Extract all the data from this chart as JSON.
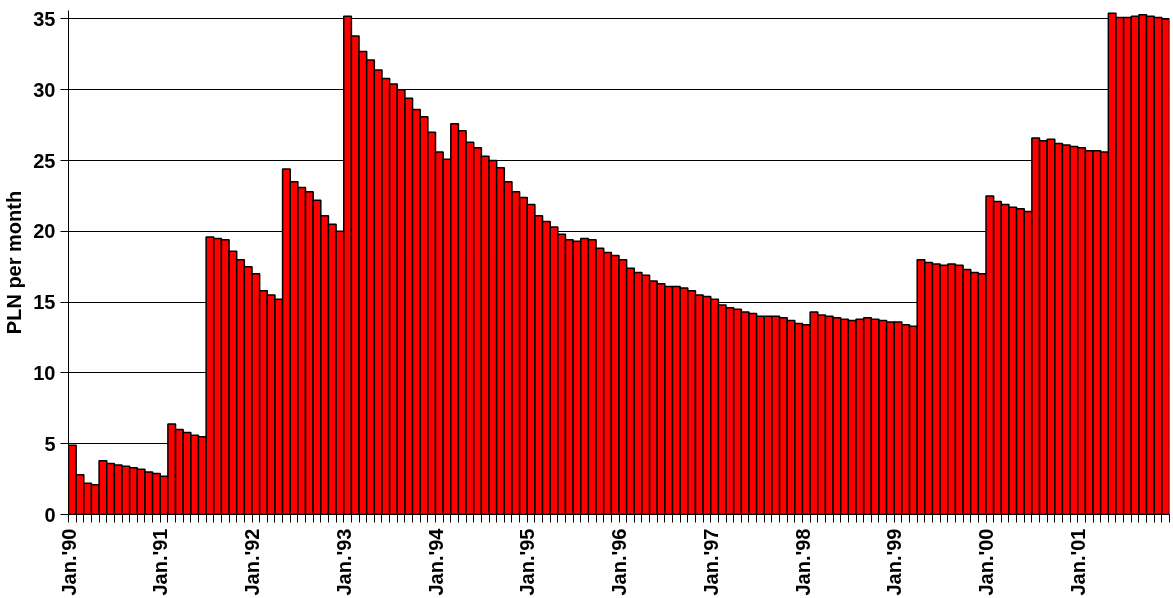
{
  "chart_data": {
    "type": "bar",
    "ylabel": "PLN per month",
    "categories": [
      "Jan.'90",
      null,
      null,
      null,
      null,
      null,
      null,
      null,
      null,
      null,
      null,
      null,
      "Jan.'91",
      null,
      null,
      null,
      null,
      null,
      null,
      null,
      null,
      null,
      null,
      null,
      "Jan.'92",
      null,
      null,
      null,
      null,
      null,
      null,
      null,
      null,
      null,
      null,
      null,
      "Jan.'93",
      null,
      null,
      null,
      null,
      null,
      null,
      null,
      null,
      null,
      null,
      null,
      "Jan.'94",
      null,
      null,
      null,
      null,
      null,
      null,
      null,
      null,
      null,
      null,
      null,
      "Jan.'95",
      null,
      null,
      null,
      null,
      null,
      null,
      null,
      null,
      null,
      null,
      null,
      "Jan.'96",
      null,
      null,
      null,
      null,
      null,
      null,
      null,
      null,
      null,
      null,
      null,
      "Jan.'97",
      null,
      null,
      null,
      null,
      null,
      null,
      null,
      null,
      null,
      null,
      null,
      "Jan.'98",
      null,
      null,
      null,
      null,
      null,
      null,
      null,
      null,
      null,
      null,
      null,
      "Jan.'99",
      null,
      null,
      null,
      null,
      null,
      null,
      null,
      null,
      null,
      null,
      null,
      "Jan.'00",
      null,
      null,
      null,
      null,
      null,
      null,
      null,
      null,
      null,
      null,
      null,
      "Jan.'01",
      null,
      null,
      null,
      null,
      null,
      null,
      null,
      null,
      null,
      null,
      null
    ],
    "values": [
      4.9,
      2.8,
      2.2,
      2.1,
      3.8,
      3.6,
      3.5,
      3.4,
      3.3,
      3.2,
      3.0,
      2.9,
      2.7,
      6.4,
      6.0,
      5.8,
      5.6,
      5.5,
      19.6,
      19.5,
      19.4,
      18.6,
      18.0,
      17.5,
      17.0,
      15.8,
      15.5,
      15.2,
      24.4,
      23.5,
      23.1,
      22.8,
      22.2,
      21.1,
      20.5,
      20.0,
      35.2,
      33.8,
      32.7,
      32.1,
      31.4,
      30.8,
      30.4,
      30.0,
      29.4,
      28.6,
      28.1,
      27.0,
      25.6,
      25.1,
      27.6,
      27.1,
      26.3,
      25.9,
      25.3,
      25.0,
      24.5,
      23.5,
      22.8,
      22.4,
      21.9,
      21.1,
      20.7,
      20.3,
      19.8,
      19.4,
      19.3,
      19.5,
      19.4,
      18.8,
      18.5,
      18.3,
      18.0,
      17.4,
      17.1,
      16.9,
      16.5,
      16.3,
      16.1,
      16.1,
      16.0,
      15.8,
      15.5,
      15.4,
      15.2,
      14.8,
      14.6,
      14.5,
      14.3,
      14.2,
      14.0,
      14.0,
      14.0,
      13.9,
      13.7,
      13.5,
      13.4,
      14.3,
      14.1,
      14.0,
      13.9,
      13.8,
      13.7,
      13.8,
      13.9,
      13.8,
      13.7,
      13.6,
      13.6,
      13.4,
      13.3,
      18.0,
      17.8,
      17.7,
      17.6,
      17.7,
      17.6,
      17.3,
      17.1,
      17.0,
      22.5,
      22.1,
      21.9,
      21.7,
      21.6,
      21.4,
      26.6,
      26.4,
      26.5,
      26.2,
      26.1,
      26.0,
      25.9,
      25.7,
      25.7,
      25.6,
      35.4,
      35.1,
      35.1,
      35.2,
      35.3,
      35.2,
      35.1,
      35.0
    ],
    "color": "#ff0000",
    "ylim": [
      0,
      35.6
    ],
    "yticks": [
      0,
      5,
      10,
      15,
      20,
      25,
      30,
      35
    ],
    "grid": "y"
  }
}
